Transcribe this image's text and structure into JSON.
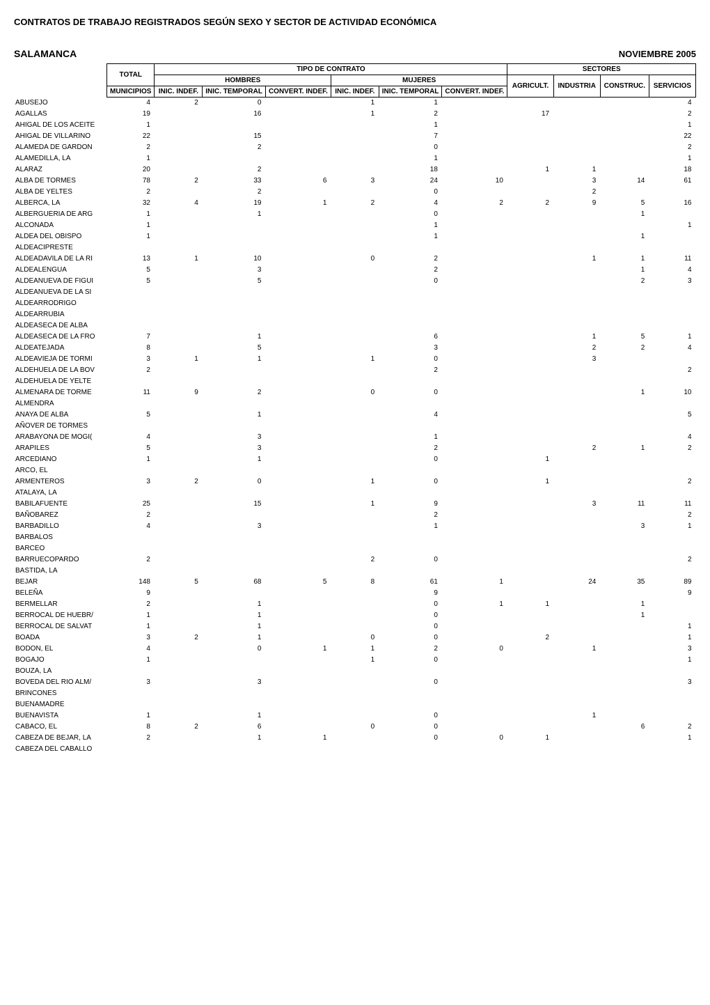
{
  "title": "CONTRATOS DE TRABAJO REGISTRADOS SEGÚN SEXO Y SECTOR DE ACTIVIDAD ECONÓMICA",
  "region": "SALAMANCA",
  "period": "NOVIEMBRE 2005",
  "headers": {
    "total": "TOTAL",
    "tipo": "TIPO DE CONTRATO",
    "sectores": "SECTORES",
    "hombres": "HOMBRES",
    "mujeres": "MUJERES",
    "municipios": "MUNICIPIOS",
    "inic_indef": "INIC. INDEF.",
    "inic_temporal": "INIC. TEMPORAL",
    "convert_indef": "CONVERT. INDEF.",
    "agricult": "AGRICULT.",
    "industria": "INDUSTRIA",
    "construc": "CONSTRUC.",
    "servicios": "SERVICIOS"
  },
  "rows": [
    {
      "m": "ABUSEJO",
      "t": "4",
      "hi": "2",
      "ht": "0",
      "hc": "",
      "mi": "1",
      "mt": "1",
      "mc": "",
      "a": "",
      "i": "",
      "c": "",
      "s": "4"
    },
    {
      "m": "AGALLAS",
      "t": "19",
      "hi": "",
      "ht": "16",
      "hc": "",
      "mi": "1",
      "mt": "2",
      "mc": "",
      "a": "17",
      "i": "",
      "c": "",
      "s": "2"
    },
    {
      "m": "AHIGAL DE LOS ACEITE",
      "t": "1",
      "hi": "",
      "ht": "",
      "hc": "",
      "mi": "",
      "mt": "1",
      "mc": "",
      "a": "",
      "i": "",
      "c": "",
      "s": "1"
    },
    {
      "m": "AHIGAL DE VILLARINO",
      "t": "22",
      "hi": "",
      "ht": "15",
      "hc": "",
      "mi": "",
      "mt": "7",
      "mc": "",
      "a": "",
      "i": "",
      "c": "",
      "s": "22"
    },
    {
      "m": "ALAMEDA DE GARDON",
      "t": "2",
      "hi": "",
      "ht": "2",
      "hc": "",
      "mi": "",
      "mt": "0",
      "mc": "",
      "a": "",
      "i": "",
      "c": "",
      "s": "2"
    },
    {
      "m": "ALAMEDILLA, LA",
      "t": "1",
      "hi": "",
      "ht": "",
      "hc": "",
      "mi": "",
      "mt": "1",
      "mc": "",
      "a": "",
      "i": "",
      "c": "",
      "s": "1"
    },
    {
      "m": "ALARAZ",
      "t": "20",
      "hi": "",
      "ht": "2",
      "hc": "",
      "mi": "",
      "mt": "18",
      "mc": "",
      "a": "1",
      "i": "1",
      "c": "",
      "s": "18"
    },
    {
      "m": "ALBA DE TORMES",
      "t": "78",
      "hi": "2",
      "ht": "33",
      "hc": "6",
      "mi": "3",
      "mt": "24",
      "mc": "10",
      "a": "",
      "i": "3",
      "c": "14",
      "s": "61"
    },
    {
      "m": "ALBA DE YELTES",
      "t": "2",
      "hi": "",
      "ht": "2",
      "hc": "",
      "mi": "",
      "mt": "0",
      "mc": "",
      "a": "",
      "i": "2",
      "c": "",
      "s": ""
    },
    {
      "m": "ALBERCA, LA",
      "t": "32",
      "hi": "4",
      "ht": "19",
      "hc": "1",
      "mi": "2",
      "mt": "4",
      "mc": "2",
      "a": "2",
      "i": "9",
      "c": "5",
      "s": "16"
    },
    {
      "m": "ALBERGUERIA DE ARG",
      "t": "1",
      "hi": "",
      "ht": "1",
      "hc": "",
      "mi": "",
      "mt": "0",
      "mc": "",
      "a": "",
      "i": "",
      "c": "1",
      "s": ""
    },
    {
      "m": "ALCONADA",
      "t": "1",
      "hi": "",
      "ht": "",
      "hc": "",
      "mi": "",
      "mt": "1",
      "mc": "",
      "a": "",
      "i": "",
      "c": "",
      "s": "1"
    },
    {
      "m": "ALDEA DEL OBISPO",
      "t": "1",
      "hi": "",
      "ht": "",
      "hc": "",
      "mi": "",
      "mt": "1",
      "mc": "",
      "a": "",
      "i": "",
      "c": "1",
      "s": ""
    },
    {
      "m": "ALDEACIPRESTE",
      "t": "",
      "hi": "",
      "ht": "",
      "hc": "",
      "mi": "",
      "mt": "",
      "mc": "",
      "a": "",
      "i": "",
      "c": "",
      "s": ""
    },
    {
      "m": "ALDEADAVILA DE LA RI",
      "t": "13",
      "hi": "1",
      "ht": "10",
      "hc": "",
      "mi": "0",
      "mt": "2",
      "mc": "",
      "a": "",
      "i": "1",
      "c": "1",
      "s": "11"
    },
    {
      "m": "ALDEALENGUA",
      "t": "5",
      "hi": "",
      "ht": "3",
      "hc": "",
      "mi": "",
      "mt": "2",
      "mc": "",
      "a": "",
      "i": "",
      "c": "1",
      "s": "4"
    },
    {
      "m": "ALDEANUEVA DE FIGUI",
      "t": "5",
      "hi": "",
      "ht": "5",
      "hc": "",
      "mi": "",
      "mt": "0",
      "mc": "",
      "a": "",
      "i": "",
      "c": "2",
      "s": "3"
    },
    {
      "m": "ALDEANUEVA DE LA SI",
      "t": "",
      "hi": "",
      "ht": "",
      "hc": "",
      "mi": "",
      "mt": "",
      "mc": "",
      "a": "",
      "i": "",
      "c": "",
      "s": ""
    },
    {
      "m": "ALDEARRODRIGO",
      "t": "",
      "hi": "",
      "ht": "",
      "hc": "",
      "mi": "",
      "mt": "",
      "mc": "",
      "a": "",
      "i": "",
      "c": "",
      "s": ""
    },
    {
      "m": "ALDEARRUBIA",
      "t": "",
      "hi": "",
      "ht": "",
      "hc": "",
      "mi": "",
      "mt": "",
      "mc": "",
      "a": "",
      "i": "",
      "c": "",
      "s": ""
    },
    {
      "m": "ALDEASECA DE ALBA",
      "t": "",
      "hi": "",
      "ht": "",
      "hc": "",
      "mi": "",
      "mt": "",
      "mc": "",
      "a": "",
      "i": "",
      "c": "",
      "s": ""
    },
    {
      "m": "ALDEASECA DE LA FRO",
      "t": "7",
      "hi": "",
      "ht": "1",
      "hc": "",
      "mi": "",
      "mt": "6",
      "mc": "",
      "a": "",
      "i": "1",
      "c": "5",
      "s": "1"
    },
    {
      "m": "ALDEATEJADA",
      "t": "8",
      "hi": "",
      "ht": "5",
      "hc": "",
      "mi": "",
      "mt": "3",
      "mc": "",
      "a": "",
      "i": "2",
      "c": "2",
      "s": "4"
    },
    {
      "m": "ALDEAVIEJA DE TORMI",
      "t": "3",
      "hi": "1",
      "ht": "1",
      "hc": "",
      "mi": "1",
      "mt": "0",
      "mc": "",
      "a": "",
      "i": "3",
      "c": "",
      "s": ""
    },
    {
      "m": "ALDEHUELA DE LA BOV",
      "t": "2",
      "hi": "",
      "ht": "",
      "hc": "",
      "mi": "",
      "mt": "2",
      "mc": "",
      "a": "",
      "i": "",
      "c": "",
      "s": "2"
    },
    {
      "m": "ALDEHUELA DE YELTE",
      "t": "",
      "hi": "",
      "ht": "",
      "hc": "",
      "mi": "",
      "mt": "",
      "mc": "",
      "a": "",
      "i": "",
      "c": "",
      "s": ""
    },
    {
      "m": "ALMENARA DE TORME",
      "t": "11",
      "hi": "9",
      "ht": "2",
      "hc": "",
      "mi": "0",
      "mt": "0",
      "mc": "",
      "a": "",
      "i": "",
      "c": "1",
      "s": "10"
    },
    {
      "m": "ALMENDRA",
      "t": "",
      "hi": "",
      "ht": "",
      "hc": "",
      "mi": "",
      "mt": "",
      "mc": "",
      "a": "",
      "i": "",
      "c": "",
      "s": ""
    },
    {
      "m": "ANAYA DE ALBA",
      "t": "5",
      "hi": "",
      "ht": "1",
      "hc": "",
      "mi": "",
      "mt": "4",
      "mc": "",
      "a": "",
      "i": "",
      "c": "",
      "s": "5"
    },
    {
      "m": "AÑOVER DE TORMES",
      "t": "",
      "hi": "",
      "ht": "",
      "hc": "",
      "mi": "",
      "mt": "",
      "mc": "",
      "a": "",
      "i": "",
      "c": "",
      "s": ""
    },
    {
      "m": "ARABAYONA DE MOGI(",
      "t": "4",
      "hi": "",
      "ht": "3",
      "hc": "",
      "mi": "",
      "mt": "1",
      "mc": "",
      "a": "",
      "i": "",
      "c": "",
      "s": "4"
    },
    {
      "m": "ARAPILES",
      "t": "5",
      "hi": "",
      "ht": "3",
      "hc": "",
      "mi": "",
      "mt": "2",
      "mc": "",
      "a": "",
      "i": "2",
      "c": "1",
      "s": "2"
    },
    {
      "m": "ARCEDIANO",
      "t": "1",
      "hi": "",
      "ht": "1",
      "hc": "",
      "mi": "",
      "mt": "0",
      "mc": "",
      "a": "1",
      "i": "",
      "c": "",
      "s": ""
    },
    {
      "m": "ARCO, EL",
      "t": "",
      "hi": "",
      "ht": "",
      "hc": "",
      "mi": "",
      "mt": "",
      "mc": "",
      "a": "",
      "i": "",
      "c": "",
      "s": ""
    },
    {
      "m": "ARMENTEROS",
      "t": "3",
      "hi": "2",
      "ht": "0",
      "hc": "",
      "mi": "1",
      "mt": "0",
      "mc": "",
      "a": "1",
      "i": "",
      "c": "",
      "s": "2"
    },
    {
      "m": "ATALAYA, LA",
      "t": "",
      "hi": "",
      "ht": "",
      "hc": "",
      "mi": "",
      "mt": "",
      "mc": "",
      "a": "",
      "i": "",
      "c": "",
      "s": ""
    },
    {
      "m": "BABILAFUENTE",
      "t": "25",
      "hi": "",
      "ht": "15",
      "hc": "",
      "mi": "1",
      "mt": "9",
      "mc": "",
      "a": "",
      "i": "3",
      "c": "11",
      "s": "11"
    },
    {
      "m": "BAÑOBAREZ",
      "t": "2",
      "hi": "",
      "ht": "",
      "hc": "",
      "mi": "",
      "mt": "2",
      "mc": "",
      "a": "",
      "i": "",
      "c": "",
      "s": "2"
    },
    {
      "m": "BARBADILLO",
      "t": "4",
      "hi": "",
      "ht": "3",
      "hc": "",
      "mi": "",
      "mt": "1",
      "mc": "",
      "a": "",
      "i": "",
      "c": "3",
      "s": "1"
    },
    {
      "m": "BARBALOS",
      "t": "",
      "hi": "",
      "ht": "",
      "hc": "",
      "mi": "",
      "mt": "",
      "mc": "",
      "a": "",
      "i": "",
      "c": "",
      "s": ""
    },
    {
      "m": "BARCEO",
      "t": "",
      "hi": "",
      "ht": "",
      "hc": "",
      "mi": "",
      "mt": "",
      "mc": "",
      "a": "",
      "i": "",
      "c": "",
      "s": ""
    },
    {
      "m": "BARRUECOPARDO",
      "t": "2",
      "hi": "",
      "ht": "",
      "hc": "",
      "mi": "2",
      "mt": "0",
      "mc": "",
      "a": "",
      "i": "",
      "c": "",
      "s": "2"
    },
    {
      "m": "BASTIDA, LA",
      "t": "",
      "hi": "",
      "ht": "",
      "hc": "",
      "mi": "",
      "mt": "",
      "mc": "",
      "a": "",
      "i": "",
      "c": "",
      "s": ""
    },
    {
      "m": "BEJAR",
      "t": "148",
      "hi": "5",
      "ht": "68",
      "hc": "5",
      "mi": "8",
      "mt": "61",
      "mc": "1",
      "a": "",
      "i": "24",
      "c": "35",
      "s": "89"
    },
    {
      "m": "BELEÑA",
      "t": "9",
      "hi": "",
      "ht": "",
      "hc": "",
      "mi": "",
      "mt": "9",
      "mc": "",
      "a": "",
      "i": "",
      "c": "",
      "s": "9"
    },
    {
      "m": "BERMELLAR",
      "t": "2",
      "hi": "",
      "ht": "1",
      "hc": "",
      "mi": "",
      "mt": "0",
      "mc": "1",
      "a": "1",
      "i": "",
      "c": "1",
      "s": ""
    },
    {
      "m": "BERROCAL DE HUEBR/",
      "t": "1",
      "hi": "",
      "ht": "1",
      "hc": "",
      "mi": "",
      "mt": "0",
      "mc": "",
      "a": "",
      "i": "",
      "c": "1",
      "s": ""
    },
    {
      "m": "BERROCAL DE SALVAT",
      "t": "1",
      "hi": "",
      "ht": "1",
      "hc": "",
      "mi": "",
      "mt": "0",
      "mc": "",
      "a": "",
      "i": "",
      "c": "",
      "s": "1"
    },
    {
      "m": "BOADA",
      "t": "3",
      "hi": "2",
      "ht": "1",
      "hc": "",
      "mi": "0",
      "mt": "0",
      "mc": "",
      "a": "2",
      "i": "",
      "c": "",
      "s": "1"
    },
    {
      "m": "BODON, EL",
      "t": "4",
      "hi": "",
      "ht": "0",
      "hc": "1",
      "mi": "1",
      "mt": "2",
      "mc": "0",
      "a": "",
      "i": "1",
      "c": "",
      "s": "3"
    },
    {
      "m": "BOGAJO",
      "t": "1",
      "hi": "",
      "ht": "",
      "hc": "",
      "mi": "1",
      "mt": "0",
      "mc": "",
      "a": "",
      "i": "",
      "c": "",
      "s": "1"
    },
    {
      "m": "BOUZA, LA",
      "t": "",
      "hi": "",
      "ht": "",
      "hc": "",
      "mi": "",
      "mt": "",
      "mc": "",
      "a": "",
      "i": "",
      "c": "",
      "s": ""
    },
    {
      "m": "BOVEDA DEL RIO ALM/",
      "t": "3",
      "hi": "",
      "ht": "3",
      "hc": "",
      "mi": "",
      "mt": "0",
      "mc": "",
      "a": "",
      "i": "",
      "c": "",
      "s": "3"
    },
    {
      "m": "BRINCONES",
      "t": "",
      "hi": "",
      "ht": "",
      "hc": "",
      "mi": "",
      "mt": "",
      "mc": "",
      "a": "",
      "i": "",
      "c": "",
      "s": ""
    },
    {
      "m": "BUENAMADRE",
      "t": "",
      "hi": "",
      "ht": "",
      "hc": "",
      "mi": "",
      "mt": "",
      "mc": "",
      "a": "",
      "i": "",
      "c": "",
      "s": ""
    },
    {
      "m": "BUENAVISTA",
      "t": "1",
      "hi": "",
      "ht": "1",
      "hc": "",
      "mi": "",
      "mt": "0",
      "mc": "",
      "a": "",
      "i": "1",
      "c": "",
      "s": ""
    },
    {
      "m": "CABACO, EL",
      "t": "8",
      "hi": "2",
      "ht": "6",
      "hc": "",
      "mi": "0",
      "mt": "0",
      "mc": "",
      "a": "",
      "i": "",
      "c": "6",
      "s": "2"
    },
    {
      "m": "CABEZA DE BEJAR, LA",
      "t": "2",
      "hi": "",
      "ht": "1",
      "hc": "1",
      "mi": "",
      "mt": "0",
      "mc": "0",
      "a": "1",
      "i": "",
      "c": "",
      "s": "1"
    },
    {
      "m": "CABEZA DEL CABALLO",
      "t": "",
      "hi": "",
      "ht": "",
      "hc": "",
      "mi": "",
      "mt": "",
      "mc": "",
      "a": "",
      "i": "",
      "c": "",
      "s": ""
    }
  ]
}
